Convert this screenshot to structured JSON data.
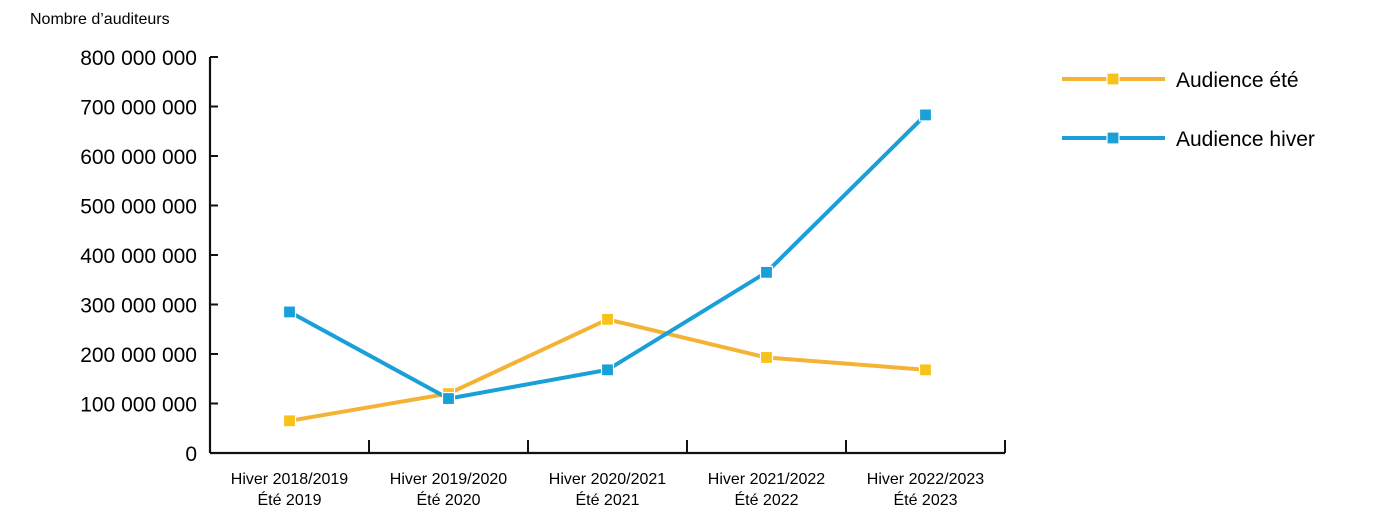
{
  "chart_data": {
    "type": "line",
    "title": "",
    "ylabel": "Nombre d’auditeurs",
    "xlabel": "",
    "ylim": [
      0,
      800000000
    ],
    "yticks": [
      0,
      100000000,
      200000000,
      300000000,
      400000000,
      500000000,
      600000000,
      700000000,
      800000000
    ],
    "ytick_labels": [
      "0",
      "100 000 000",
      "200 000 000",
      "300 000 000",
      "400 000 000",
      "500 000 000",
      "600 000 000",
      "700 000 000",
      "800 000 000"
    ],
    "categories": [
      [
        "Hiver 2018/2019",
        "Été 2019"
      ],
      [
        "Hiver 2019/2020",
        "Été 2020"
      ],
      [
        "Hiver 2020/2021",
        "Été 2021"
      ],
      [
        "Hiver 2021/2022",
        "Été 2022"
      ],
      [
        "Hiver 2022/2023",
        "Été 2023"
      ]
    ],
    "series": [
      {
        "name": "Audience été",
        "color": "#f5b335",
        "marker_color": "#f7c21a",
        "values": [
          65000000,
          120000000,
          270000000,
          193000000,
          168000000
        ]
      },
      {
        "name": "Audience hiver",
        "color": "#1aa0d8",
        "marker_color": "#1aa0d8",
        "values": [
          285000000,
          110000000,
          168000000,
          365000000,
          683000000
        ]
      }
    ],
    "grid": false,
    "legend_position": "top-right"
  }
}
